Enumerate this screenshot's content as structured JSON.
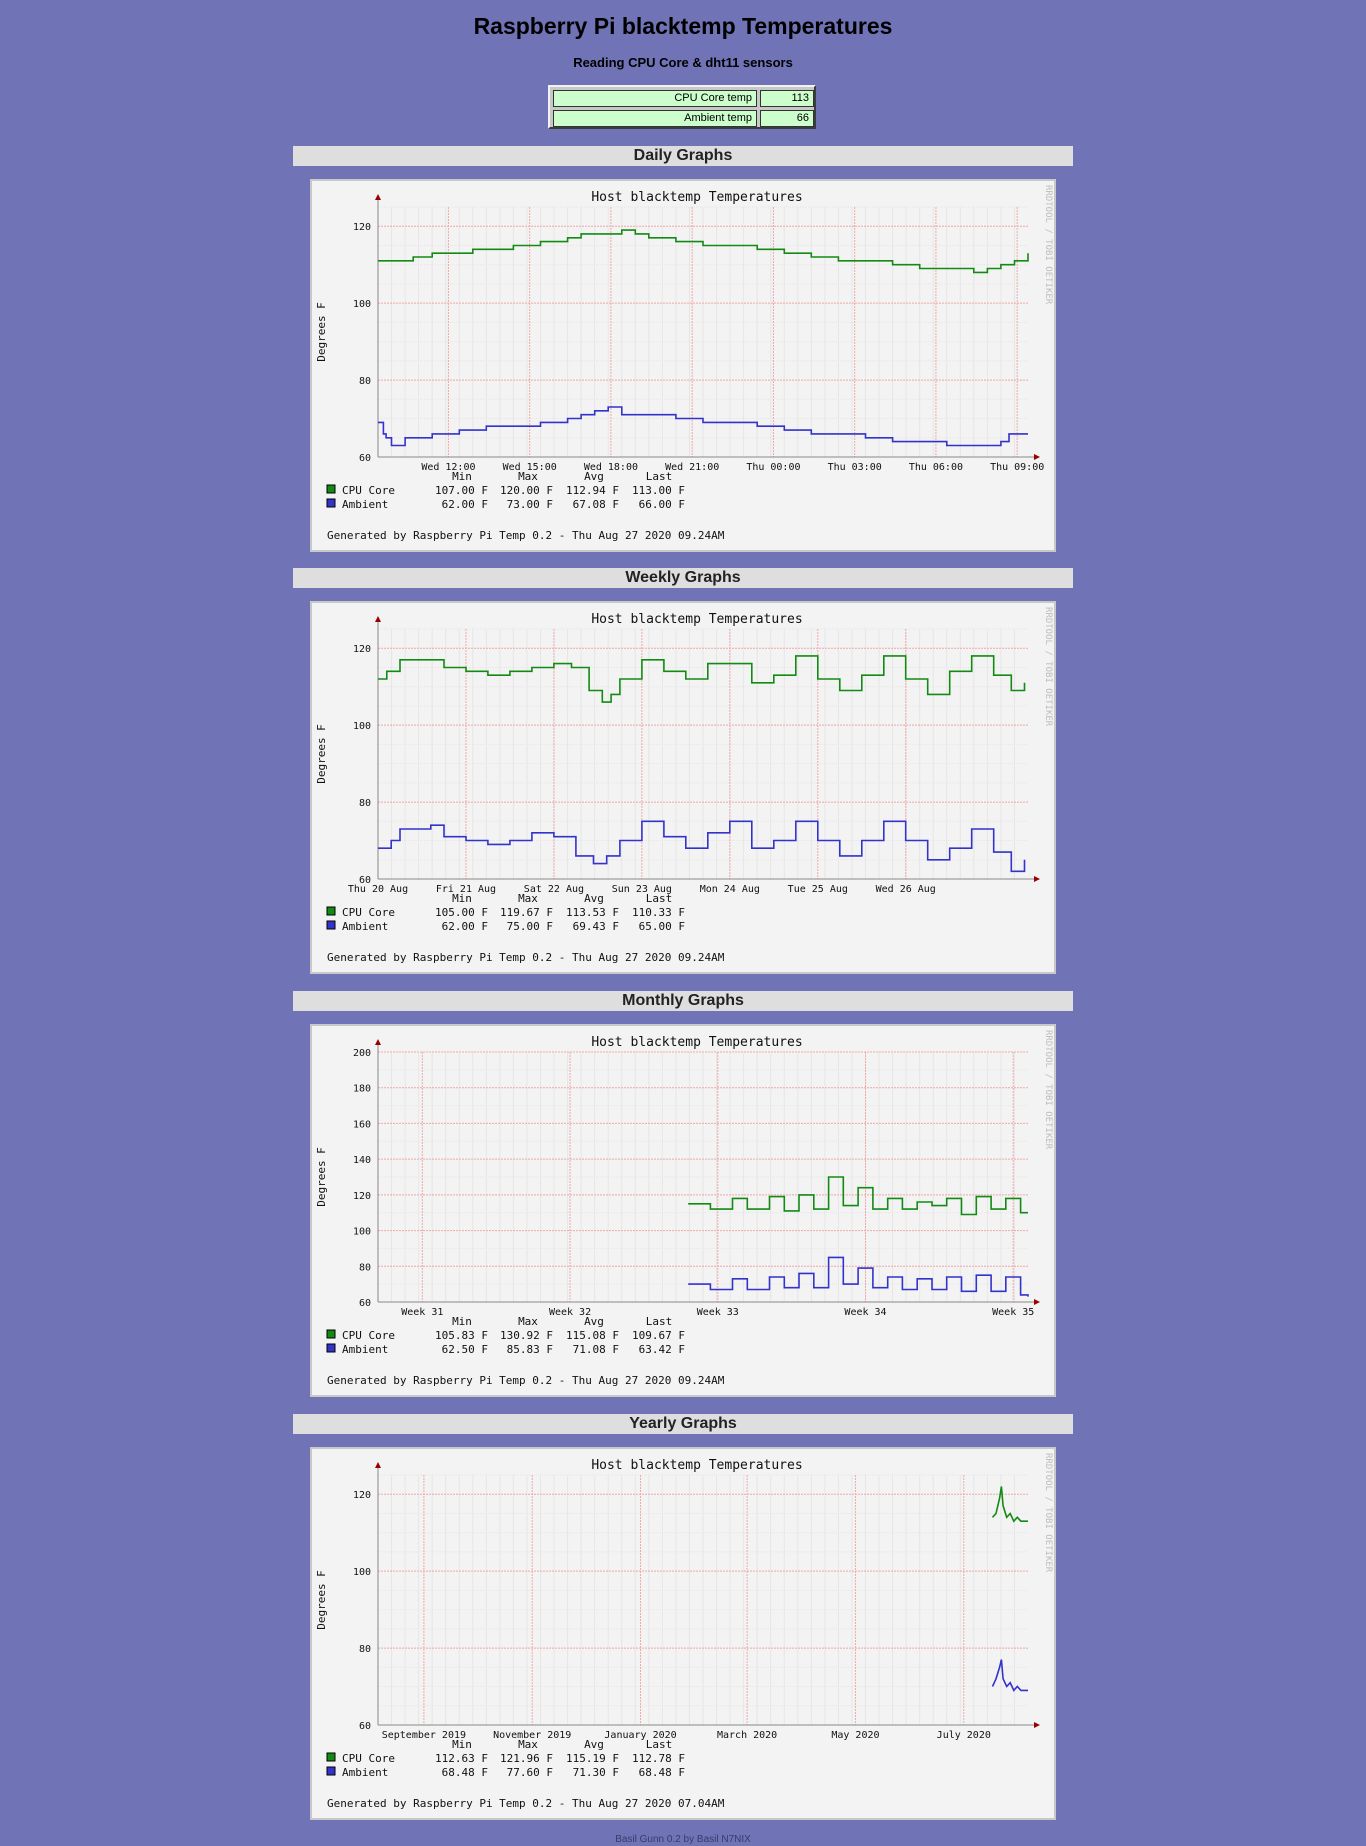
{
  "page": {
    "title": "Raspberry Pi blacktemp Temperatures",
    "subtitle": "Reading CPU Core & dht11 sensors",
    "footer": "Basil Gunn 0.2 by Basil N7NIX"
  },
  "readings": [
    {
      "label": "CPU Core temp",
      "value": "113"
    },
    {
      "label": "Ambient temp",
      "value": "66"
    }
  ],
  "colors": {
    "background": "#7074b6",
    "cpu_line": "#138a13",
    "ambient_line": "#3333cc",
    "major_grid": "#f0a8a8",
    "minor_grid": "#e6e6e6",
    "axis": "#888888",
    "arrow": "#990000"
  },
  "legend_headers": [
    "Min",
    "Max",
    "Avg",
    "Last"
  ],
  "watermark": "RRDTOOL / TOBI OETIKER",
  "chart_data": [
    {
      "section": "Daily Graphs",
      "type": "line",
      "title": "Host blacktemp Temperatures",
      "ylabel": "Degrees F",
      "ylim": [
        60,
        125
      ],
      "yticks": [
        60,
        80,
        100,
        120
      ],
      "x_ticks": [
        "Wed 12:00",
        "Wed 15:00",
        "Wed 18:00",
        "Wed 21:00",
        "Thu 00:00",
        "Thu 03:00",
        "Thu 06:00",
        "Thu 09:00"
      ],
      "x_range": [
        "Wed 09:24",
        "Thu 09:24"
      ],
      "step": true,
      "series": [
        {
          "name": "CPU Core",
          "color": "#138a13",
          "x": [
            0,
            1,
            1.3,
            2,
            3,
            3.5,
            4,
            5,
            5.5,
            6,
            6.5,
            7,
            7.5,
            8,
            9,
            9.5,
            10,
            10.5,
            11,
            12,
            13,
            14,
            15,
            16,
            17,
            18,
            19,
            20,
            21,
            22,
            22.5,
            23,
            23.5,
            24
          ],
          "values": [
            111,
            111,
            112,
            113,
            113,
            114,
            114,
            115,
            115,
            116,
            116,
            117,
            118,
            118,
            119,
            118,
            117,
            117,
            116,
            115,
            115,
            114,
            113,
            112,
            111,
            111,
            110,
            109,
            109,
            108,
            109,
            110,
            111,
            113
          ],
          "stats": {
            "min": "107.00 F",
            "max": "120.00 F",
            "avg": "112.94 F",
            "last": "113.00 F"
          }
        },
        {
          "name": "Ambient",
          "color": "#3333cc",
          "x": [
            0,
            0.2,
            0.3,
            0.5,
            1,
            2,
            3,
            4,
            5,
            6,
            7,
            7.5,
            8,
            8.5,
            9,
            10,
            11,
            12,
            13,
            14,
            15,
            16,
            17,
            18,
            19,
            20,
            21,
            22,
            23,
            23.3,
            24
          ],
          "values": [
            69,
            66,
            65,
            63,
            65,
            66,
            67,
            68,
            68,
            69,
            70,
            71,
            72,
            73,
            71,
            71,
            70,
            69,
            69,
            68,
            67,
            66,
            66,
            65,
            64,
            64,
            63,
            63,
            64,
            66,
            66
          ],
          "stats": {
            "min": "62.00 F",
            "max": "73.00 F",
            "avg": "67.08 F",
            "last": "66.00 F"
          }
        }
      ],
      "generated": "Generated by Raspberry Pi Temp 0.2 - Thu Aug 27 2020 09.24AM"
    },
    {
      "section": "Weekly Graphs",
      "type": "line",
      "title": "Host blacktemp Temperatures",
      "ylabel": "Degrees F",
      "ylim": [
        60,
        125
      ],
      "yticks": [
        60,
        80,
        100,
        120
      ],
      "x_ticks": [
        "Thu 20 Aug",
        "Fri 21 Aug",
        "Sat 22 Aug",
        "Sun 23 Aug",
        "Mon 24 Aug",
        "Tue 25 Aug",
        "Wed 26 Aug"
      ],
      "x_range": [
        "Thu 20 Aug 00:00",
        "Thu 27 Aug 09:24"
      ],
      "step": true,
      "series": [
        {
          "name": "CPU Core",
          "color": "#138a13",
          "x": [
            0,
            0.1,
            0.25,
            0.5,
            0.75,
            1,
            1.25,
            1.5,
            1.75,
            2,
            2.2,
            2.4,
            2.55,
            2.65,
            2.75,
            3,
            3.25,
            3.5,
            3.75,
            4,
            4.25,
            4.5,
            4.75,
            5,
            5.25,
            5.5,
            5.75,
            6,
            6.25,
            6.5,
            6.75,
            7,
            7.2,
            7.35
          ],
          "values": [
            112,
            114,
            117,
            117,
            115,
            114,
            113,
            114,
            115,
            116,
            115,
            109,
            106,
            108,
            112,
            117,
            114,
            112,
            116,
            116,
            111,
            113,
            118,
            112,
            109,
            113,
            118,
            112,
            108,
            114,
            118,
            113,
            109,
            111
          ],
          "stats": {
            "min": "105.00 F",
            "max": "119.67 F",
            "avg": "113.53 F",
            "last": "110.33 F"
          }
        },
        {
          "name": "Ambient",
          "color": "#3333cc",
          "x": [
            0,
            0.15,
            0.25,
            0.45,
            0.6,
            0.75,
            1,
            1.25,
            1.5,
            1.75,
            2,
            2.25,
            2.45,
            2.6,
            2.75,
            3,
            3.25,
            3.5,
            3.75,
            4,
            4.25,
            4.5,
            4.75,
            5,
            5.25,
            5.5,
            5.75,
            6,
            6.25,
            6.5,
            6.75,
            7,
            7.2,
            7.35
          ],
          "values": [
            68,
            70,
            73,
            73,
            74,
            71,
            70,
            69,
            70,
            72,
            71,
            66,
            64,
            66,
            70,
            75,
            71,
            68,
            72,
            75,
            68,
            70,
            75,
            70,
            66,
            70,
            75,
            70,
            65,
            68,
            73,
            67,
            62,
            65
          ],
          "stats": {
            "min": "62.00 F",
            "max": "75.00 F",
            "avg": "69.43 F",
            "last": "65.00 F"
          }
        }
      ],
      "generated": "Generated by Raspberry Pi Temp 0.2 - Thu Aug 27 2020 09.24AM"
    },
    {
      "section": "Monthly Graphs",
      "type": "line",
      "title": "Host blacktemp Temperatures",
      "ylabel": "Degrees F",
      "ylim": [
        60,
        200
      ],
      "yticks": [
        60,
        80,
        100,
        120,
        140,
        160,
        180,
        200
      ],
      "x_ticks": [
        "Week 31",
        "Week 32",
        "Week 33",
        "Week 34",
        "Week 35"
      ],
      "x_range": [
        "Week 30.7",
        "Week 35.1"
      ],
      "step": true,
      "series": [
        {
          "name": "CPU Core",
          "color": "#138a13",
          "x": [
            32.8,
            32.95,
            33.1,
            33.2,
            33.35,
            33.45,
            33.55,
            33.65,
            33.75,
            33.85,
            33.95,
            34.05,
            34.15,
            34.25,
            34.35,
            34.45,
            34.55,
            34.65,
            34.75,
            34.85,
            34.95,
            35.05,
            35.1
          ],
          "values": [
            115,
            112,
            118,
            112,
            119,
            111,
            120,
            112,
            130,
            114,
            124,
            112,
            118,
            112,
            116,
            114,
            118,
            109,
            119,
            112,
            118,
            110,
            110
          ],
          "stats": {
            "min": "105.83 F",
            "max": "130.92 F",
            "avg": "115.08 F",
            "last": "109.67 F"
          }
        },
        {
          "name": "Ambient",
          "color": "#3333cc",
          "x": [
            32.8,
            32.95,
            33.1,
            33.2,
            33.35,
            33.45,
            33.55,
            33.65,
            33.75,
            33.85,
            33.95,
            34.05,
            34.15,
            34.25,
            34.35,
            34.45,
            34.55,
            34.65,
            34.75,
            34.85,
            34.95,
            35.05,
            35.1
          ],
          "values": [
            70,
            67,
            73,
            67,
            74,
            68,
            76,
            68,
            85,
            70,
            79,
            68,
            74,
            67,
            73,
            67,
            74,
            66,
            75,
            66,
            74,
            64,
            63
          ],
          "stats": {
            "min": "62.50 F",
            "max": "85.83 F",
            "avg": "71.08 F",
            "last": "63.42 F"
          }
        }
      ],
      "generated": "Generated by Raspberry Pi Temp 0.2 - Thu Aug 27 2020 09.24AM"
    },
    {
      "section": "Yearly Graphs",
      "type": "line",
      "title": "Host blacktemp Temperatures",
      "ylabel": "Degrees F",
      "ylim": [
        60,
        125
      ],
      "yticks": [
        60,
        80,
        100,
        120
      ],
      "x_ticks": [
        "September 2019",
        "November 2019",
        "January 2020",
        "March 2020",
        "May 2020",
        "July 2020"
      ],
      "x_range": [
        "2019-08-27",
        "2020-08-27"
      ],
      "step": false,
      "series": [
        {
          "name": "CPU Core",
          "color": "#138a13",
          "x": [
            "2020-08-07",
            "2020-08-09",
            "2020-08-11",
            "2020-08-12",
            "2020-08-13",
            "2020-08-15",
            "2020-08-17",
            "2020-08-19",
            "2020-08-21",
            "2020-08-23",
            "2020-08-25",
            "2020-08-27"
          ],
          "values": [
            114,
            115,
            119,
            122,
            117,
            114,
            115,
            113,
            114,
            113,
            113,
            113
          ],
          "stats": {
            "min": "112.63 F",
            "max": "121.96 F",
            "avg": "115.19 F",
            "last": "112.78 F"
          }
        },
        {
          "name": "Ambient",
          "color": "#3333cc",
          "x": [
            "2020-08-07",
            "2020-08-09",
            "2020-08-11",
            "2020-08-12",
            "2020-08-13",
            "2020-08-15",
            "2020-08-17",
            "2020-08-19",
            "2020-08-21",
            "2020-08-23",
            "2020-08-25",
            "2020-08-27"
          ],
          "values": [
            70,
            72,
            75,
            77,
            72,
            70,
            71,
            69,
            70,
            69,
            69,
            69
          ],
          "stats": {
            "min": "68.48 F",
            "max": "77.60 F",
            "avg": "71.30 F",
            "last": "68.48 F"
          }
        }
      ],
      "generated": "Generated by Raspberry Pi Temp 0.2 - Thu Aug 27 2020 07.04AM"
    }
  ]
}
